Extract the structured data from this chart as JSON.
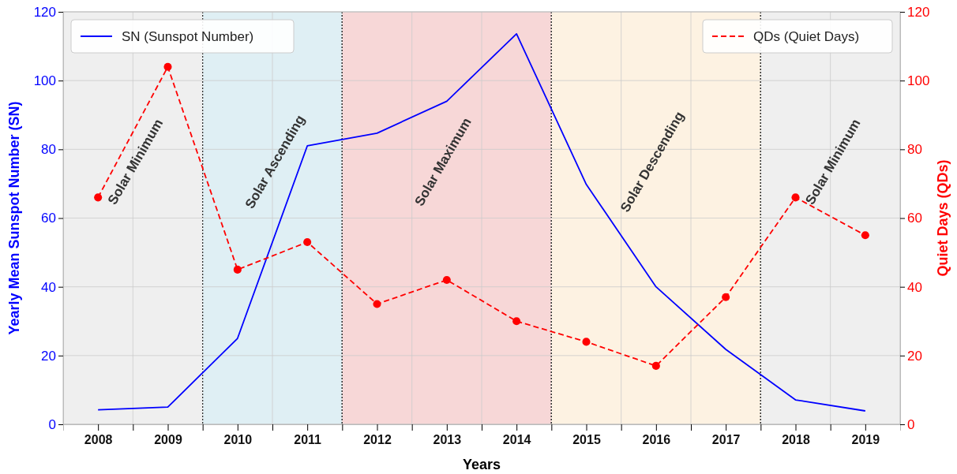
{
  "chart_data": {
    "type": "line",
    "xlabel": "Years",
    "ylabel": "Yearly Mean Sunspot Number (SN)",
    "y2label": "Quiet Days (QDs)",
    "x": [
      2008,
      2009,
      2010,
      2011,
      2012,
      2013,
      2014,
      2015,
      2016,
      2017,
      2018,
      2019
    ],
    "xlim": [
      2007.5,
      2019.5
    ],
    "xticks": [
      2008,
      {
        "value": 2008.5,
        "label": null
      },
      2009,
      {
        "value": 2009.5,
        "label": null
      },
      2010,
      {
        "value": 2010.5,
        "label": null
      },
      2011,
      {
        "value": 2011.5,
        "label": null
      },
      2012,
      {
        "value": 2012.5,
        "label": null
      },
      2013,
      {
        "value": 2013.5,
        "label": null
      },
      2014,
      {
        "value": 2014.5,
        "label": null
      },
      2015,
      {
        "value": 2015.5,
        "label": null
      },
      2016,
      {
        "value": 2016.5,
        "label": null
      },
      2017,
      {
        "value": 2017.5,
        "label": null
      },
      2018,
      {
        "value": 2018.5,
        "label": null
      },
      2019
    ],
    "ylim": [
      0,
      120
    ],
    "yticks": [
      0,
      20,
      40,
      60,
      80,
      100,
      120
    ],
    "y2lim": [
      0,
      120
    ],
    "y2ticks": [
      0,
      20,
      40,
      60,
      80,
      100,
      120
    ],
    "series": [
      {
        "name": "SN (Sunspot Number)",
        "color": "#0000ff",
        "line_style": "solid",
        "marker": "none",
        "values": [
          4.2,
          5,
          25,
          81,
          84.7,
          94,
          113.6,
          69.8,
          40,
          21.8,
          7.1,
          3.9
        ]
      },
      {
        "name": "QDs (Quiet Days)",
        "color": "#ff0000",
        "line_style": "dashed",
        "marker": "circle",
        "axis": "y2",
        "values": [
          66,
          104,
          45,
          53,
          35,
          42,
          30,
          24,
          17,
          37,
          66,
          55
        ]
      }
    ],
    "bands": [
      {
        "axis": "x",
        "from": 2007.5,
        "to": 2009.5,
        "label": "Solar Minimum",
        "color": "#efefef"
      },
      {
        "axis": "x",
        "from": 2009.5,
        "to": 2011.5,
        "label": "Solar Ascending",
        "color": "#dfeff4"
      },
      {
        "axis": "x",
        "from": 2011.5,
        "to": 2014.5,
        "label": "Solar Maximum",
        "color": "#f7d7d7"
      },
      {
        "axis": "x",
        "from": 2014.5,
        "to": 2017.5,
        "label": "Solar Descending",
        "color": "#fdf2e2"
      },
      {
        "axis": "x",
        "from": 2017.5,
        "to": 2019.5,
        "label": "Solar Minimum",
        "color": "#efefef"
      }
    ],
    "grid": true,
    "legend": "top"
  }
}
